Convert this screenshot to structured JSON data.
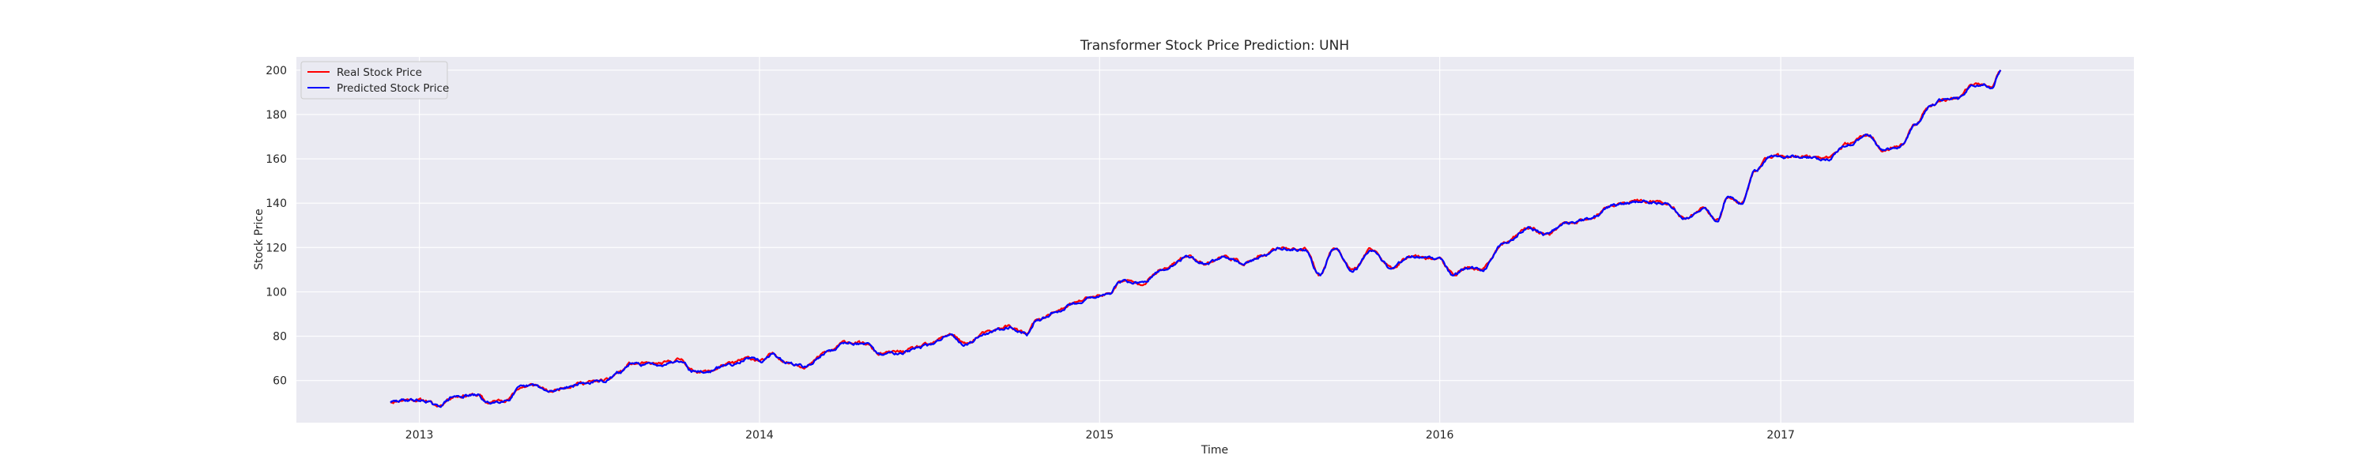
{
  "chart_data": {
    "type": "line",
    "title": "Transformer Stock Price Prediction: UNH",
    "xlabel": "Time",
    "ylabel": "Stock Price",
    "xlim": [
      "2012-08-22",
      "2018-01-15"
    ],
    "ylim": [
      41,
      206
    ],
    "x_ticks": [
      "2013-01-01",
      "2014-01-01",
      "2015-01-01",
      "2016-01-01",
      "2017-01-01"
    ],
    "x_tick_labels": [
      "2013",
      "2014",
      "2015",
      "2016",
      "2017"
    ],
    "y_ticks": [
      60,
      80,
      100,
      120,
      140,
      160,
      180,
      200
    ],
    "grid": true,
    "legend_position": "top-left",
    "anchors": [
      [
        "2012-12-01",
        50.5
      ],
      [
        "2012-12-20",
        51.5
      ],
      [
        "2013-01-08",
        51.0
      ],
      [
        "2013-01-20",
        48.5
      ],
      [
        "2013-02-08",
        53.0
      ],
      [
        "2013-03-05",
        53.5
      ],
      [
        "2013-03-15",
        50.0
      ],
      [
        "2013-04-05",
        51.5
      ],
      [
        "2013-04-20",
        57.0
      ],
      [
        "2013-05-05",
        58.0
      ],
      [
        "2013-05-20",
        55.0
      ],
      [
        "2013-06-10",
        57.5
      ],
      [
        "2013-06-25",
        59.0
      ],
      [
        "2013-07-20",
        60.0
      ],
      [
        "2013-08-05",
        64.0
      ],
      [
        "2013-08-15",
        67.5
      ],
      [
        "2013-09-15",
        67.5
      ],
      [
        "2013-10-10",
        69.5
      ],
      [
        "2013-10-20",
        64.5
      ],
      [
        "2013-11-05",
        64.0
      ],
      [
        "2013-11-30",
        67.5
      ],
      [
        "2013-12-20",
        70.0
      ],
      [
        "2014-01-05",
        69.0
      ],
      [
        "2014-01-15",
        72.0
      ],
      [
        "2014-02-01",
        68.0
      ],
      [
        "2014-02-20",
        66.5
      ],
      [
        "2014-03-15",
        73.0
      ],
      [
        "2014-04-05",
        77.5
      ],
      [
        "2014-04-25",
        76.5
      ],
      [
        "2014-05-10",
        72.0
      ],
      [
        "2014-06-01",
        73.0
      ],
      [
        "2014-07-01",
        76.0
      ],
      [
        "2014-07-25",
        81.0
      ],
      [
        "2014-08-10",
        76.5
      ],
      [
        "2014-09-01",
        81.5
      ],
      [
        "2014-09-25",
        84.5
      ],
      [
        "2014-10-15",
        81.0
      ],
      [
        "2014-10-25",
        87.0
      ],
      [
        "2014-11-15",
        91.0
      ],
      [
        "2014-12-05",
        95.0
      ],
      [
        "2014-12-25",
        98.0
      ],
      [
        "2015-01-10",
        99.0
      ],
      [
        "2015-01-25",
        105.0
      ],
      [
        "2015-02-15",
        104.0
      ],
      [
        "2015-03-10",
        110.0
      ],
      [
        "2015-04-05",
        116.0
      ],
      [
        "2015-04-25",
        113.0
      ],
      [
        "2015-05-15",
        116.0
      ],
      [
        "2015-06-05",
        113.0
      ],
      [
        "2015-06-25",
        116.0
      ],
      [
        "2015-07-15",
        120.0
      ],
      [
        "2015-08-10",
        119.0
      ],
      [
        "2015-08-25",
        108.0
      ],
      [
        "2015-09-10",
        120.0
      ],
      [
        "2015-09-30",
        110.0
      ],
      [
        "2015-10-20",
        119.0
      ],
      [
        "2015-11-10",
        111.0
      ],
      [
        "2015-12-01",
        116.5
      ],
      [
        "2015-12-31",
        115.0
      ],
      [
        "2016-01-15",
        108.0
      ],
      [
        "2016-02-01",
        111.0
      ],
      [
        "2016-02-15",
        110.0
      ],
      [
        "2016-03-10",
        122.0
      ],
      [
        "2016-04-05",
        129.0
      ],
      [
        "2016-04-25",
        126.0
      ],
      [
        "2016-05-15",
        131.0
      ],
      [
        "2016-06-10",
        133.0
      ],
      [
        "2016-07-05",
        139.0
      ],
      [
        "2016-08-01",
        141.0
      ],
      [
        "2016-09-01",
        140.0
      ],
      [
        "2016-09-20",
        133.0
      ],
      [
        "2016-10-10",
        138.0
      ],
      [
        "2016-10-25",
        132.0
      ],
      [
        "2016-11-05",
        143.0
      ],
      [
        "2016-11-20",
        140.0
      ],
      [
        "2016-12-05",
        155.0
      ],
      [
        "2016-12-20",
        161.0
      ],
      [
        "2017-01-15",
        161.0
      ],
      [
        "2017-02-01",
        161.0
      ],
      [
        "2017-02-20",
        160.0
      ],
      [
        "2017-03-15",
        167.0
      ],
      [
        "2017-04-05",
        171.0
      ],
      [
        "2017-04-20",
        164.0
      ],
      [
        "2017-05-10",
        166.0
      ],
      [
        "2017-05-25",
        175.0
      ],
      [
        "2017-06-10",
        184.0
      ],
      [
        "2017-06-25",
        187.0
      ],
      [
        "2017-07-10",
        187.0
      ],
      [
        "2017-07-25",
        193.0
      ],
      [
        "2017-08-08",
        194.0
      ],
      [
        "2017-08-15",
        192.0
      ],
      [
        "2017-08-25",
        200.0
      ]
    ],
    "series": [
      {
        "name": "Real Stock Price",
        "color": "#ff0000",
        "seed": 11,
        "amp": 1.1,
        "offset": 0.0
      },
      {
        "name": "Predicted Stock Price",
        "color": "#0000ff",
        "seed": 29,
        "amp": 1.0,
        "offset": -0.2
      }
    ]
  }
}
